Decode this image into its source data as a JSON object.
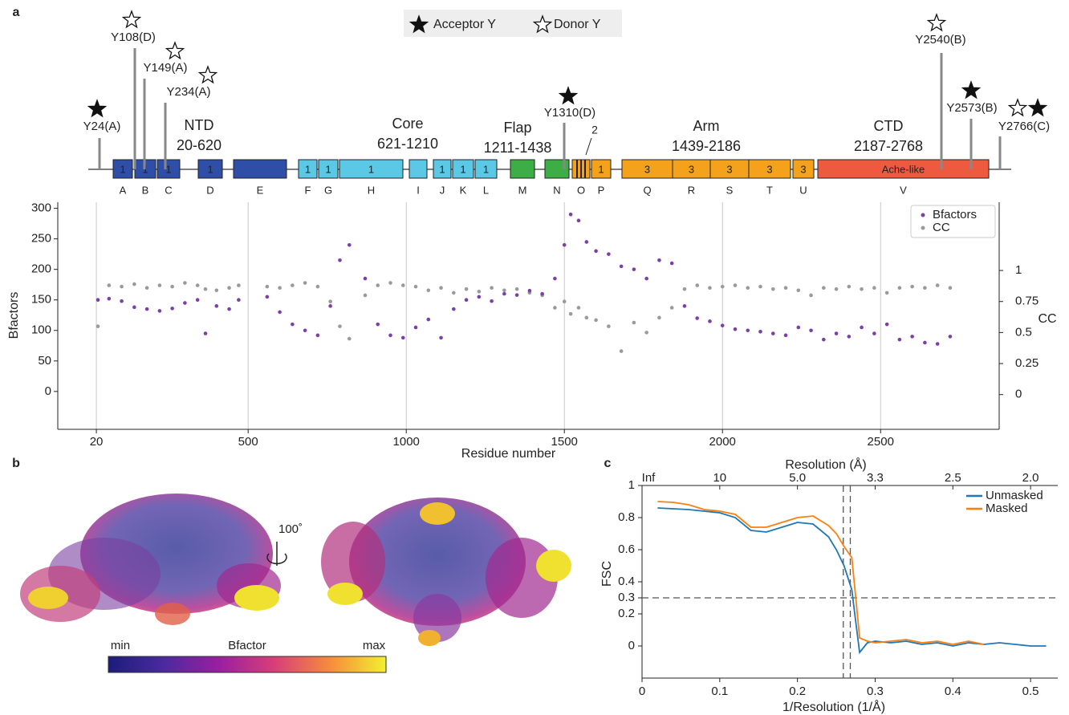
{
  "panel_labels": [
    "a",
    "b",
    "c"
  ],
  "domain_map": {
    "legend": [
      {
        "label": "Acceptor Y",
        "type": "acceptor"
      },
      {
        "label": "Donor Y",
        "type": "donor"
      }
    ],
    "domains": [
      {
        "name": "NTD",
        "range": "20-620",
        "color": "#2f4ea8"
      },
      {
        "name": "Core",
        "range": "621-1210",
        "color": "#5bc8e6"
      },
      {
        "name": "Flap",
        "range": "1211-1438",
        "color": "#3cae45"
      },
      {
        "name": "Arm",
        "range": "1439-2186",
        "color": "#f4a21c"
      },
      {
        "name": "CTD",
        "range": "2187-2768",
        "color": "#ee5a40"
      }
    ],
    "segments": [
      {
        "letter": "A",
        "number": "1",
        "domain": 0
      },
      {
        "letter": "B",
        "number": "1",
        "domain": 0
      },
      {
        "letter": "C",
        "number": "1",
        "domain": 0
      },
      {
        "letter": "D",
        "number": "1",
        "domain": 0
      },
      {
        "letter": "E",
        "domain": 0
      },
      {
        "letter": "F",
        "number": "1",
        "domain": 1
      },
      {
        "letter": "G",
        "number": "1",
        "domain": 1
      },
      {
        "letter": "H",
        "number": "1",
        "domain": 1
      },
      {
        "letter": "I",
        "domain": 1
      },
      {
        "letter": "J",
        "number": "1",
        "domain": 1
      },
      {
        "letter": "K",
        "number": "1",
        "domain": 1
      },
      {
        "letter": "L",
        "number": "1",
        "domain": 1
      },
      {
        "letter": "M",
        "domain": 2
      },
      {
        "letter": "N",
        "domain": 2
      },
      {
        "letter": "O",
        "number": "2",
        "domain": 3
      },
      {
        "letter": "P",
        "number": "1",
        "domain": 3
      },
      {
        "letter": "Q",
        "number": "3",
        "domain": 3
      },
      {
        "letter": "R",
        "number": "3",
        "domain": 3
      },
      {
        "letter": "S",
        "number": "3",
        "domain": 3
      },
      {
        "letter": "T",
        "number": "3",
        "domain": 3
      },
      {
        "letter": "U",
        "number": "3",
        "domain": 3
      },
      {
        "letter": "V",
        "number": "Ache-like",
        "domain": 4
      }
    ],
    "sites": [
      {
        "label": "Y24(A)",
        "type": "acceptor"
      },
      {
        "label": "Y108(D)",
        "type": "donor"
      },
      {
        "label": "Y149(A)",
        "type": "donor"
      },
      {
        "label": "Y234(A)",
        "type": "donor"
      },
      {
        "label": "Y1310(D)",
        "type": "acceptor"
      },
      {
        "label": "Y2540(B)",
        "type": "donor"
      },
      {
        "label": "Y2573(B)",
        "type": "acceptor"
      },
      {
        "label": "Y2766(C)",
        "type": "both"
      }
    ]
  },
  "structure_panel": {
    "rotation_label": "100˚",
    "colorbar": {
      "min_label": "min",
      "title": "Bfactor",
      "max_label": "max"
    }
  },
  "chart_data": [
    {
      "type": "scatter",
      "xlabel": "Residue number",
      "ylabel": "Bfactors",
      "y2label": "CC",
      "x": [
        25,
        60,
        100,
        140,
        180,
        220,
        260,
        300,
        340,
        365,
        400,
        440,
        470,
        560,
        600,
        640,
        680,
        720,
        760,
        790,
        820,
        870,
        910,
        950,
        990,
        1030,
        1070,
        1110,
        1150,
        1190,
        1230,
        1270,
        1310,
        1350,
        1390,
        1430,
        1470,
        1500,
        1520,
        1545,
        1570,
        1600,
        1640,
        1680,
        1720,
        1760,
        1800,
        1840,
        1880,
        1920,
        1960,
        2000,
        2040,
        2080,
        2120,
        2160,
        2200,
        2240,
        2280,
        2320,
        2360,
        2400,
        2440,
        2480,
        2520,
        2560,
        2600,
        2640,
        2680,
        2720
      ],
      "series": [
        {
          "name": "Bfactors",
          "color": "#7b3fa8",
          "values": [
            150,
            152,
            148,
            138,
            135,
            132,
            136,
            145,
            150,
            95,
            140,
            135,
            150,
            155,
            130,
            110,
            100,
            92,
            140,
            215,
            240,
            185,
            110,
            92,
            88,
            105,
            118,
            88,
            135,
            150,
            155,
            148,
            160,
            158,
            165,
            160,
            185,
            240,
            290,
            280,
            245,
            230,
            225,
            205,
            200,
            185,
            215,
            210,
            140,
            120,
            115,
            108,
            102,
            100,
            98,
            95,
            92,
            105,
            100,
            85,
            95,
            90,
            105,
            95,
            110,
            85,
            90,
            80,
            78,
            90
          ]
        },
        {
          "name": "CC",
          "color": "#9a9a9a",
          "axis": "y2",
          "values": [
            0.55,
            0.88,
            0.87,
            0.89,
            0.86,
            0.88,
            0.87,
            0.9,
            0.88,
            0.85,
            0.84,
            0.86,
            0.88,
            0.87,
            0.86,
            0.88,
            0.9,
            0.87,
            0.75,
            0.55,
            0.45,
            0.8,
            0.88,
            0.9,
            0.88,
            0.87,
            0.84,
            0.86,
            0.82,
            0.85,
            0.83,
            0.86,
            0.84,
            0.85,
            0.82,
            0.8,
            0.7,
            0.75,
            0.65,
            0.7,
            0.62,
            0.6,
            0.55,
            0.35,
            0.58,
            0.5,
            0.62,
            0.7,
            0.85,
            0.88,
            0.86,
            0.87,
            0.88,
            0.86,
            0.87,
            0.85,
            0.86,
            0.84,
            0.8,
            0.86,
            0.85,
            0.87,
            0.85,
            0.86,
            0.82,
            0.86,
            0.87,
            0.86,
            0.88,
            0.86
          ]
        }
      ],
      "xlim": [
        -102,
        2875
      ],
      "xticks": [
        20,
        500,
        1000,
        1500,
        2000,
        2500
      ],
      "ylim": [
        -62,
        310
      ],
      "yticks": [
        0,
        50,
        100,
        150,
        200,
        250,
        300
      ],
      "y2lim": [
        -0.28,
        1.55
      ],
      "y2ticks": [
        0,
        0.25,
        0.5,
        0.75,
        1
      ],
      "grid": "x",
      "legend": "upper right"
    },
    {
      "type": "line",
      "xlabel": "1/Resolution (1/Å)",
      "x2label": "Resolution (Å)",
      "ylabel": "FSC",
      "x": [
        0.02,
        0.04,
        0.06,
        0.08,
        0.1,
        0.12,
        0.14,
        0.16,
        0.18,
        0.2,
        0.22,
        0.24,
        0.25,
        0.26,
        0.27,
        0.275,
        0.28,
        0.29,
        0.3,
        0.32,
        0.34,
        0.36,
        0.38,
        0.4,
        0.42,
        0.44,
        0.46,
        0.48,
        0.5,
        0.52
      ],
      "series": [
        {
          "name": "Unmasked",
          "color": "#1f77b4",
          "values": [
            0.86,
            0.855,
            0.85,
            0.84,
            0.83,
            0.8,
            0.72,
            0.71,
            0.74,
            0.77,
            0.76,
            0.68,
            0.6,
            0.5,
            0.35,
            0.15,
            -0.04,
            0.02,
            0.03,
            0.02,
            0.03,
            0.01,
            0.02,
            0.0,
            0.02,
            0.01,
            0.02,
            0.01,
            0.0,
            0.0
          ]
        },
        {
          "name": "Masked",
          "color": "#ff7f0e",
          "values": [
            0.9,
            0.895,
            0.88,
            0.85,
            0.84,
            0.82,
            0.74,
            0.74,
            0.77,
            0.8,
            0.81,
            0.75,
            0.7,
            0.62,
            0.55,
            0.3,
            0.05,
            0.03,
            0.02,
            0.03,
            0.04,
            0.02,
            0.03,
            0.01,
            0.03,
            0.01,
            null,
            null,
            null,
            null
          ]
        }
      ],
      "xlim": [
        0,
        0.535
      ],
      "xticks": [
        0,
        0.1,
        0.2,
        0.3,
        0.4,
        0.5
      ],
      "x2ticks": [
        {
          "value": 0,
          "label": "Inf"
        },
        {
          "value": 0.1,
          "label": "10"
        },
        {
          "value": 0.2,
          "label": "5.0"
        },
        {
          "value": 0.3,
          "label": "3.3"
        },
        {
          "value": 0.4,
          "label": "2.5"
        },
        {
          "value": 0.5,
          "label": "2.0"
        }
      ],
      "ylim": [
        -0.2,
        1
      ],
      "yticks": [
        0,
        0.2,
        0.3,
        0.4,
        0.6,
        0.8,
        1
      ],
      "hlines": [
        0.3
      ],
      "vlines": [
        0.259,
        0.268
      ],
      "legend": "upper right"
    }
  ]
}
